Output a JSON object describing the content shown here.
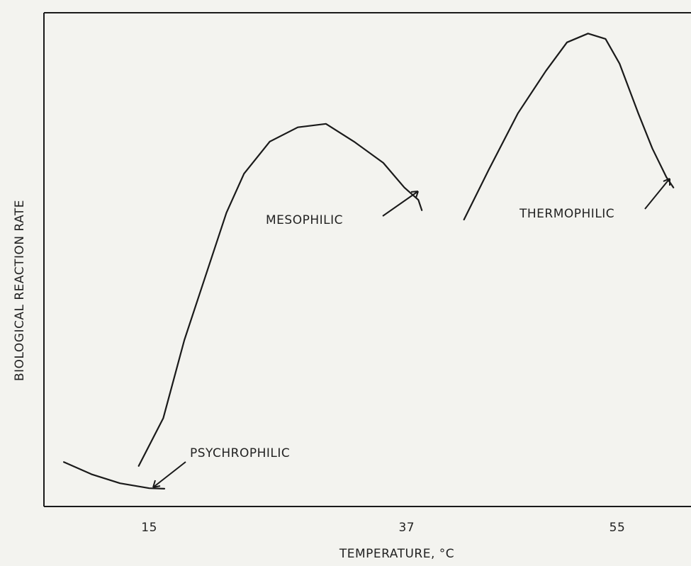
{
  "chart_data": {
    "type": "line",
    "xlabel": "TEMPERATURE, °C",
    "ylabel": "BIOLOGICAL REACTION RATE",
    "xlim": [
      6,
      61
    ],
    "ylim": [
      0,
      100
    ],
    "xticks": [
      15,
      37,
      55
    ],
    "grid": false,
    "series": [
      {
        "name": "PSYCHROPHILIC",
        "color": "#1a1a1a",
        "x": [
          7.7,
          10.1,
          12.5,
          15.0,
          16.3
        ],
        "values": [
          9.0,
          6.5,
          4.7,
          3.7,
          3.6
        ]
      },
      {
        "name": "MESOPHILIC",
        "color": "#1a1a1a",
        "x": [
          14.1,
          16.2,
          18.0,
          19.8,
          21.6,
          23.1,
          25.3,
          27.7,
          30.1,
          32.5,
          35.0,
          36.8,
          38.0,
          38.3
        ],
        "values": [
          8.2,
          17.9,
          33.7,
          46.6,
          59.5,
          67.4,
          73.9,
          76.8,
          77.5,
          73.9,
          69.6,
          64.6,
          62.1,
          60.0
        ]
      },
      {
        "name": "THERMOPHILIC",
        "color": "#1a1a1a",
        "x": [
          41.9,
          44.0,
          46.5,
          48.9,
          50.7,
          52.5,
          54.0,
          55.2,
          56.8,
          58.0,
          59.2,
          59.8
        ],
        "values": [
          58.1,
          68.1,
          79.6,
          88.2,
          94.0,
          95.8,
          94.7,
          89.7,
          79.6,
          72.5,
          66.7,
          64.6
        ]
      }
    ]
  }
}
